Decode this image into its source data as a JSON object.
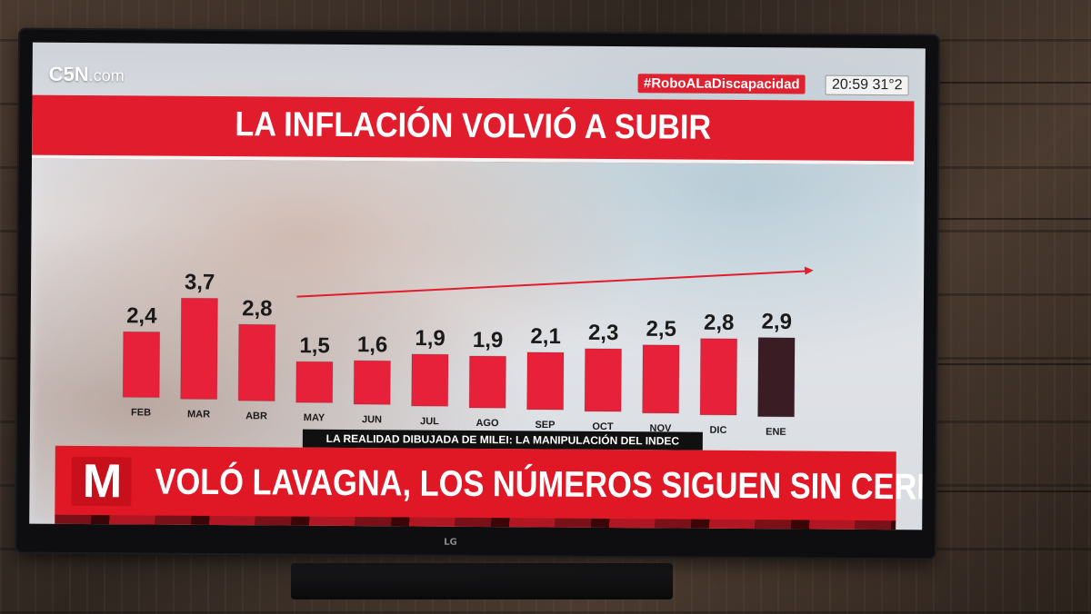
{
  "channel": {
    "logo": "C5N",
    "suffix": ".com"
  },
  "hashtag": "#RoboALaDiscapacidad",
  "clock": {
    "time": "20:59",
    "temperature": "31°2"
  },
  "title": "LA INFLACIÓN VOLVIÓ A SUBIR",
  "subtitle": "LA REALIDAD DIBUJADA DE MILEI: LA MANIPULACIÓN DEL INDEC",
  "headline": {
    "logo": "M",
    "text": "VOLÓ LAVAGNA, LOS NÚMEROS SIGUEN SIN CERRAR"
  },
  "tv_brand": "LG",
  "colors": {
    "bar": "#e8213a",
    "bar_highlight": "#3a1c24",
    "trend_arrow": "#e11c2c",
    "title_band": "#e11c2c"
  },
  "chart_data": {
    "type": "bar",
    "categories": [
      "FEB",
      "MAR",
      "ABR",
      "MAY",
      "JUN",
      "JUL",
      "AGO",
      "SEP",
      "OCT",
      "NOV",
      "DIC",
      "ENE"
    ],
    "values": [
      2.4,
      3.7,
      2.8,
      1.5,
      1.6,
      1.9,
      1.9,
      2.1,
      2.3,
      2.5,
      2.8,
      2.9
    ],
    "value_labels": [
      "2,4",
      "3,7",
      "2,8",
      "1,5",
      "1,6",
      "1,9",
      "1,9",
      "2,1",
      "2,3",
      "2,5",
      "2,8",
      "2,9"
    ],
    "highlight_category": "ENE",
    "trend_arrow": {
      "from": "MAY",
      "to": "ENE"
    },
    "title": "LA INFLACIÓN VOLVIÓ A SUBIR",
    "xlabel": "",
    "ylabel": "",
    "ylim": [
      0,
      4
    ],
    "grid": false,
    "legend": "none"
  }
}
